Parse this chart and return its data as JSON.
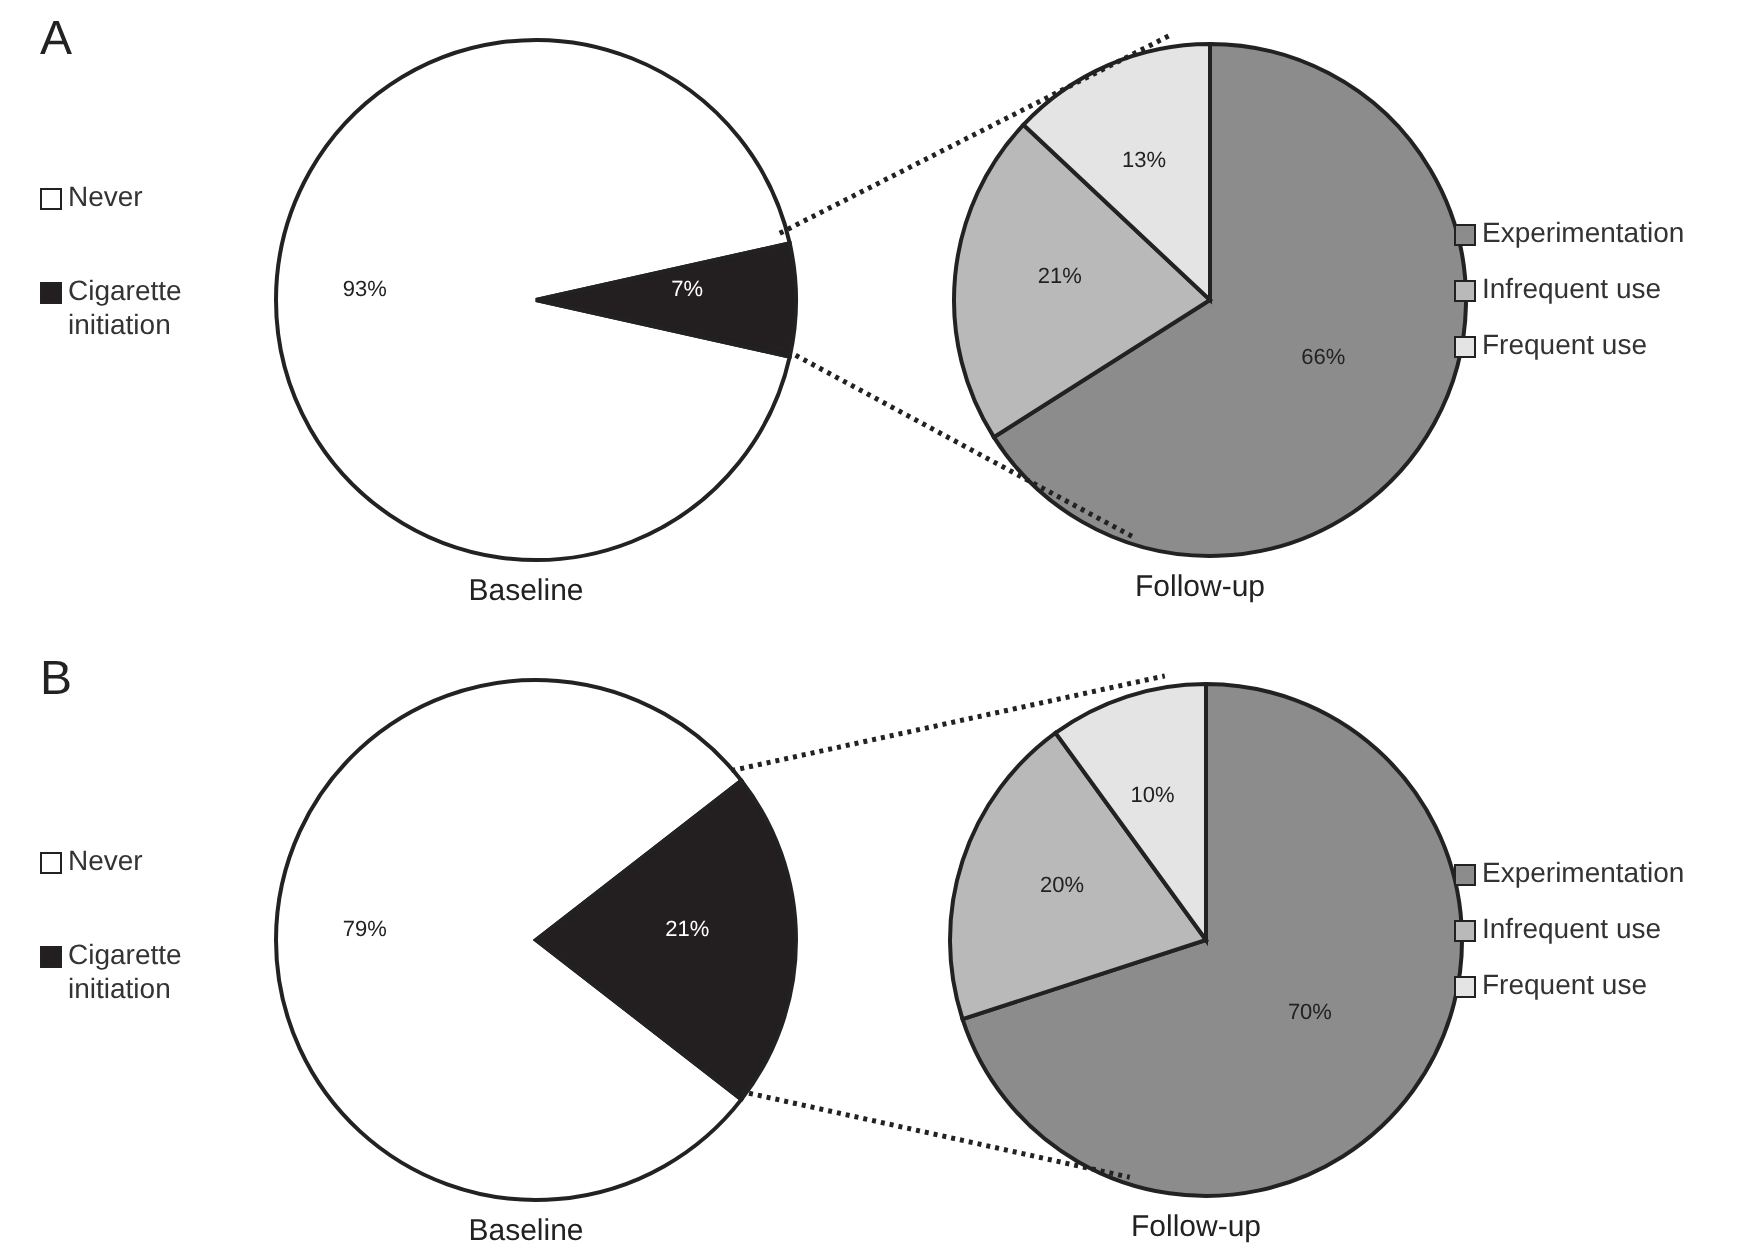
{
  "chart_data": [
    {
      "type": "pie",
      "title": "A",
      "xlabel": "Baseline",
      "categories": [
        "Never",
        "Cigarette initiation"
      ],
      "values": [
        93,
        7
      ],
      "colors": [
        "#ffffff",
        "#231f20"
      ],
      "value_labels": [
        "93%",
        "7%"
      ],
      "legend": "left"
    },
    {
      "type": "pie",
      "xlabel": "Follow-up",
      "categories": [
        "Experimentation",
        "Infrequent use",
        "Frequent use"
      ],
      "values": [
        66,
        21,
        13
      ],
      "colors": [
        "#8c8c8c",
        "#b9b9b9",
        "#e4e4e4"
      ],
      "value_labels": [
        "66%",
        "21%",
        "13%"
      ],
      "legend": "right"
    },
    {
      "type": "pie",
      "title": "B",
      "xlabel": "Baseline",
      "categories": [
        "Never",
        "Cigarette initiation"
      ],
      "values": [
        79,
        21
      ],
      "colors": [
        "#ffffff",
        "#231f20"
      ],
      "value_labels": [
        "79%",
        "21%"
      ],
      "legend": "left"
    },
    {
      "type": "pie",
      "xlabel": "Follow-up",
      "categories": [
        "Experimentation",
        "Infrequent use",
        "Frequent use"
      ],
      "values": [
        70,
        20,
        10
      ],
      "colors": [
        "#8c8c8c",
        "#b9b9b9",
        "#e4e4e4"
      ],
      "value_labels": [
        "70%",
        "20%",
        "10%"
      ],
      "legend": "right"
    }
  ]
}
